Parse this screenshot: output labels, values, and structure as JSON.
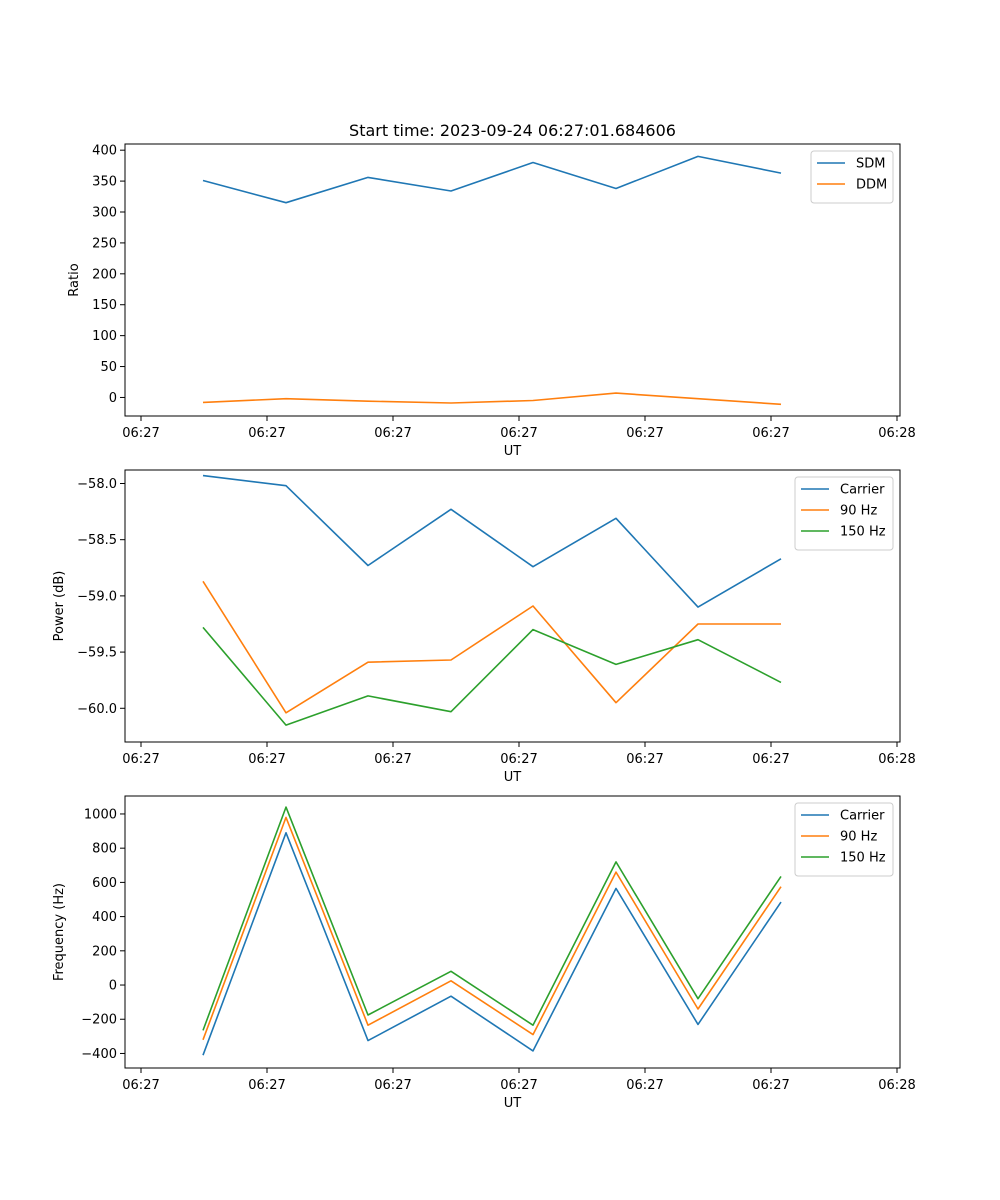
{
  "title": "Start time: 2023-09-24 06:27:01.684606",
  "chart_data": [
    {
      "type": "line",
      "title": "Start time: 2023-09-24 06:27:01.684606",
      "xlabel": "UT",
      "ylabel": "Ratio",
      "x_tick_labels": [
        "06:27",
        "06:27",
        "06:27",
        "06:27",
        "06:27",
        "06:27",
        "06:28"
      ],
      "yticks": [
        0,
        50,
        100,
        150,
        200,
        250,
        300,
        350,
        400
      ],
      "ylim": [
        -30,
        410
      ],
      "legend_position": "top-right",
      "series": [
        {
          "name": "SDM",
          "color": "#1f77b4",
          "values": [
            351,
            315,
            356,
            334,
            380,
            338,
            390,
            363
          ]
        },
        {
          "name": "DDM",
          "color": "#ff7f0e",
          "values": [
            -8,
            -2,
            -6,
            -9,
            -5,
            7,
            -2,
            -11
          ]
        }
      ]
    },
    {
      "type": "line",
      "title": "",
      "xlabel": "UT",
      "ylabel": "Power (dB)",
      "x_tick_labels": [
        "06:27",
        "06:27",
        "06:27",
        "06:27",
        "06:27",
        "06:27",
        "06:28"
      ],
      "yticks": [
        -58.0,
        -58.5,
        -59.0,
        -59.5,
        -60.0
      ],
      "ytick_labels": [
        "−58.0",
        "−58.5",
        "−59.0",
        "−59.5",
        "−60.0"
      ],
      "ylim": [
        -60.3,
        -57.88
      ],
      "legend_position": "top-right",
      "series": [
        {
          "name": "Carrier",
          "color": "#1f77b4",
          "values": [
            -57.93,
            -58.02,
            -58.73,
            -58.23,
            -58.74,
            -58.31,
            -59.1,
            -58.67
          ]
        },
        {
          "name": "90 Hz",
          "color": "#ff7f0e",
          "values": [
            -58.87,
            -60.04,
            -59.59,
            -59.57,
            -59.09,
            -59.95,
            -59.25,
            -59.25
          ]
        },
        {
          "name": "150 Hz",
          "color": "#2ca02c",
          "values": [
            -59.28,
            -60.15,
            -59.89,
            -60.03,
            -59.3,
            -59.61,
            -59.39,
            -59.77
          ]
        }
      ]
    },
    {
      "type": "line",
      "title": "",
      "xlabel": "UT",
      "ylabel": "Frequency (Hz)",
      "x_tick_labels": [
        "06:27",
        "06:27",
        "06:27",
        "06:27",
        "06:27",
        "06:27",
        "06:28"
      ],
      "yticks": [
        -400,
        -200,
        0,
        200,
        400,
        600,
        800,
        1000
      ],
      "ytick_labels": [
        "−400",
        "−200",
        "0",
        "200",
        "400",
        "600",
        "800",
        "1000"
      ],
      "ylim": [
        -485,
        1105
      ],
      "legend_position": "top-right",
      "series": [
        {
          "name": "Carrier",
          "color": "#1f77b4",
          "values": [
            -410,
            890,
            -325,
            -65,
            -385,
            565,
            -230,
            485
          ]
        },
        {
          "name": "90 Hz",
          "color": "#ff7f0e",
          "values": [
            -320,
            980,
            -235,
            25,
            -290,
            660,
            -140,
            575
          ]
        },
        {
          "name": "150 Hz",
          "color": "#2ca02c",
          "values": [
            -265,
            1040,
            -175,
            80,
            -235,
            720,
            -80,
            635
          ]
        }
      ]
    }
  ]
}
